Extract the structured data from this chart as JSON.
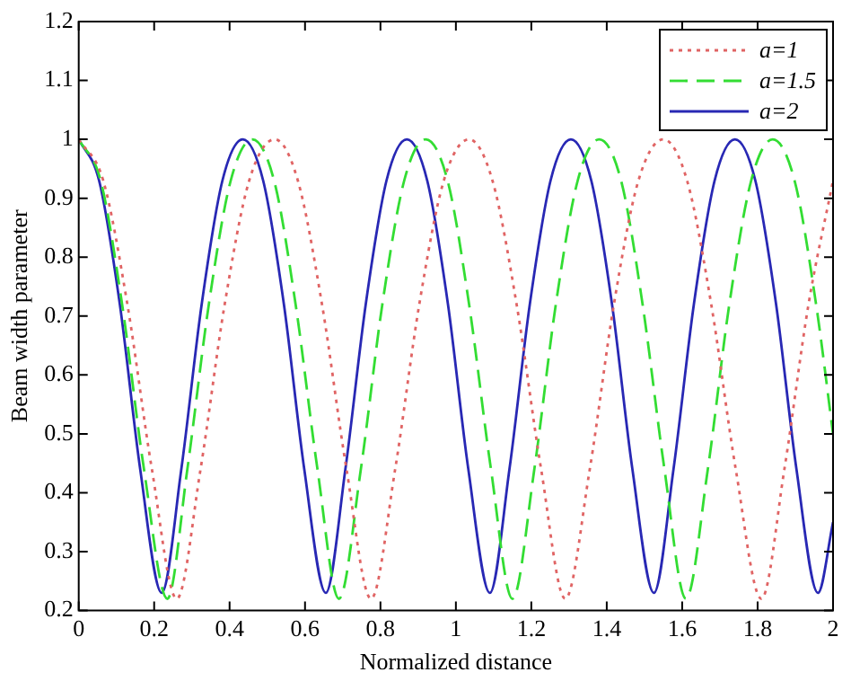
{
  "chart_data": {
    "type": "line",
    "xlabel": "Normalized distance",
    "ylabel": "Beam width parameter",
    "xlim": [
      0,
      2
    ],
    "xticks": [
      0,
      0.2,
      0.4,
      0.6,
      0.8,
      1,
      1.2,
      1.4,
      1.6,
      1.8,
      2
    ],
    "ylim": [
      0.2,
      1.2
    ],
    "yticks": [
      0.2,
      0.3,
      0.4,
      0.5,
      0.6,
      0.7,
      0.8,
      0.9,
      1,
      1.1,
      1.2
    ],
    "grid": false,
    "legend": "top right",
    "marker": "none",
    "series": [
      {
        "name": "a=1",
        "color": "#e06464",
        "line_style": "dotted",
        "x": [
          0,
          0.065,
          0.129,
          0.194,
          0.26,
          0.323,
          0.387,
          0.452,
          0.52,
          0.581,
          0.645,
          0.71,
          0.775,
          0.839,
          0.903,
          0.968,
          1.035,
          1.097,
          1.161,
          1.226,
          1.29,
          1.355,
          1.419,
          1.484,
          1.55,
          1.613,
          1.677,
          1.742,
          1.81,
          1.871,
          1.935,
          2.0
        ],
        "values": [
          1,
          0.93,
          0.72,
          0.44,
          0.22,
          0.44,
          0.72,
          0.93,
          1,
          0.93,
          0.72,
          0.44,
          0.22,
          0.44,
          0.72,
          0.93,
          1,
          0.93,
          0.72,
          0.44,
          0.22,
          0.44,
          0.72,
          0.93,
          1,
          0.93,
          0.72,
          0.44,
          0.22,
          0.44,
          0.72,
          0.93
        ]
      },
      {
        "name": "a=1.5",
        "color": "#33dd33",
        "line_style": "dashed",
        "x": [
          0,
          0.058,
          0.115,
          0.173,
          0.235,
          0.288,
          0.345,
          0.403,
          0.46,
          0.518,
          0.575,
          0.633,
          0.69,
          0.748,
          0.805,
          0.863,
          0.92,
          0.978,
          1.035,
          1.093,
          1.15,
          1.208,
          1.265,
          1.323,
          1.38,
          1.438,
          1.495,
          1.553,
          1.61,
          1.668,
          1.725,
          1.783,
          1.84,
          1.898,
          1.955,
          2.0
        ],
        "values": [
          1,
          0.93,
          0.72,
          0.44,
          0.22,
          0.44,
          0.72,
          0.93,
          1,
          0.93,
          0.72,
          0.44,
          0.22,
          0.44,
          0.72,
          0.93,
          1,
          0.93,
          0.72,
          0.44,
          0.22,
          0.44,
          0.72,
          0.93,
          1,
          0.93,
          0.72,
          0.44,
          0.22,
          0.44,
          0.72,
          0.93,
          1,
          0.93,
          0.72,
          0.5
        ]
      },
      {
        "name": "a=2",
        "color": "#2828b4",
        "line_style": "solid",
        "x": [
          0,
          0.054,
          0.109,
          0.163,
          0.22,
          0.272,
          0.326,
          0.381,
          0.435,
          0.489,
          0.544,
          0.598,
          0.655,
          0.707,
          0.761,
          0.816,
          0.87,
          0.924,
          0.979,
          1.033,
          1.09,
          1.142,
          1.196,
          1.251,
          1.305,
          1.359,
          1.414,
          1.468,
          1.525,
          1.577,
          1.631,
          1.686,
          1.74,
          1.794,
          1.849,
          1.903,
          1.96,
          2.0
        ],
        "values": [
          1,
          0.93,
          0.72,
          0.44,
          0.23,
          0.44,
          0.72,
          0.93,
          1,
          0.93,
          0.72,
          0.44,
          0.23,
          0.44,
          0.72,
          0.93,
          1,
          0.93,
          0.72,
          0.44,
          0.23,
          0.44,
          0.72,
          0.93,
          1,
          0.93,
          0.72,
          0.44,
          0.23,
          0.44,
          0.72,
          0.93,
          1,
          0.93,
          0.72,
          0.44,
          0.23,
          0.35
        ]
      }
    ]
  }
}
